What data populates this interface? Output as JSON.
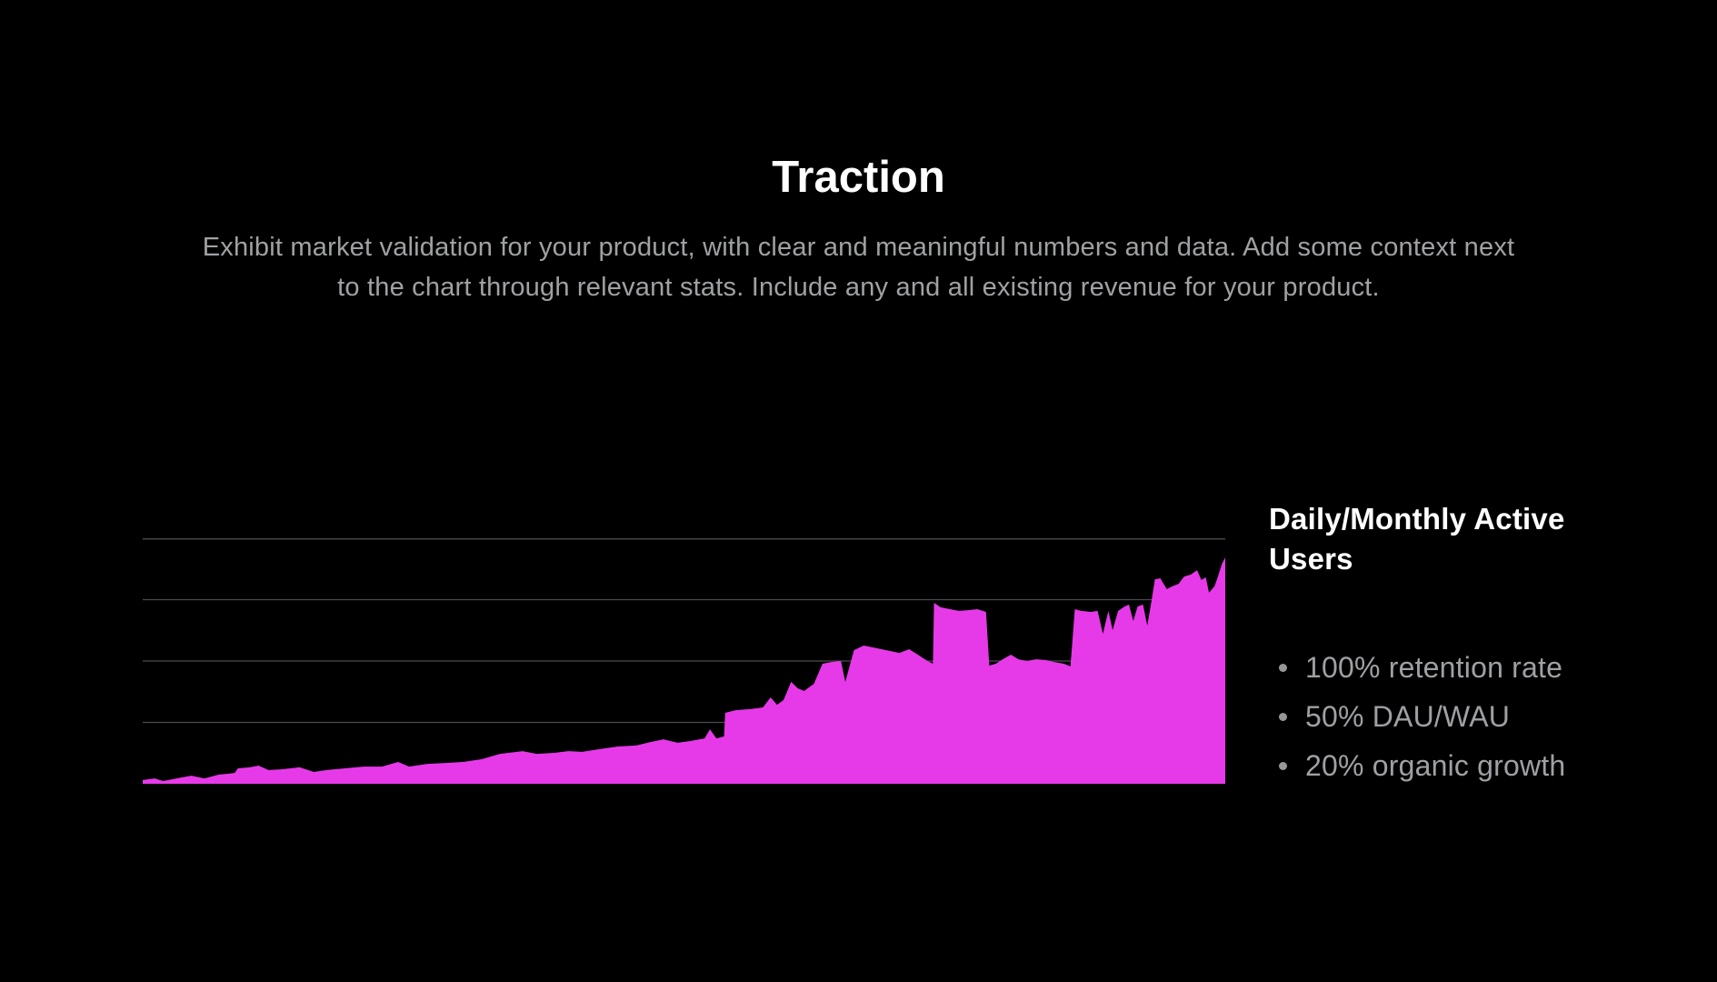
{
  "slide": {
    "title": "Traction",
    "subtitle_lines": [
      "Exhibit market validation for your product, with clear and meaningful numbers and data. Add some context next",
      "to the chart through relevant stats. Include any and all existing revenue for your product."
    ]
  },
  "stats_panel": {
    "heading": "Daily/Monthly Active Users",
    "bullets": [
      {
        "label": "100% retention rate"
      },
      {
        "label": "50% DAU/WAU"
      },
      {
        "label": "20% organic growth"
      }
    ]
  },
  "colors": {
    "background": "#000000",
    "title_text": "#ffffff",
    "subtitle_text": "#9fa1a3",
    "heading_text": "#ffffff",
    "bullet_text": "#9ea0a3",
    "bullet_dot": "#97979a",
    "area_fill": "#e63ae8",
    "gridline": "#4b4b4d"
  },
  "chart_data": {
    "type": "area",
    "title": "Daily/Monthly Active Users",
    "xlabel": "",
    "ylabel": "",
    "legend": "none",
    "grid": "horizontal-only",
    "x_axis": {
      "tick_labels": [],
      "range_pct": [
        0,
        100
      ]
    },
    "y_axis": {
      "tick_labels": [],
      "range_pct": [
        0,
        100
      ],
      "gridline_values_pct": [
        25,
        50,
        75,
        100
      ]
    },
    "series": [
      {
        "name": "Daily/Monthly Active Users",
        "points": [
          [
            0,
            1.5
          ],
          [
            1.1,
            2.2
          ],
          [
            1.9,
            1.1
          ],
          [
            3.6,
            2.6
          ],
          [
            4.5,
            3.3
          ],
          [
            5.7,
            2.2
          ],
          [
            7,
            3.7
          ],
          [
            8.5,
            4.4
          ],
          [
            8.8,
            6.3
          ],
          [
            9.9,
            6.7
          ],
          [
            10.7,
            7.4
          ],
          [
            11.6,
            5.6
          ],
          [
            12.8,
            5.9
          ],
          [
            14.5,
            6.7
          ],
          [
            15.8,
            4.8
          ],
          [
            17,
            5.6
          ],
          [
            18.7,
            6.3
          ],
          [
            20.4,
            7
          ],
          [
            22.1,
            7
          ],
          [
            23.6,
            8.9
          ],
          [
            24.6,
            7
          ],
          [
            26.3,
            8.1
          ],
          [
            28,
            8.5
          ],
          [
            29.6,
            8.9
          ],
          [
            31.3,
            10
          ],
          [
            33,
            12.2
          ],
          [
            35.1,
            13.3
          ],
          [
            36.4,
            12.2
          ],
          [
            38,
            12.6
          ],
          [
            39.3,
            13.3
          ],
          [
            40.6,
            13
          ],
          [
            42.2,
            14.1
          ],
          [
            43.9,
            15.2
          ],
          [
            45.6,
            15.6
          ],
          [
            46.9,
            17
          ],
          [
            48.1,
            18.1
          ],
          [
            49.4,
            16.7
          ],
          [
            50.6,
            17.4
          ],
          [
            51.9,
            18.5
          ],
          [
            52.4,
            22.2
          ],
          [
            53,
            18.5
          ],
          [
            53.7,
            19.3
          ],
          [
            53.8,
            28.9
          ],
          [
            54.8,
            30
          ],
          [
            56.1,
            30.4
          ],
          [
            57.3,
            31.1
          ],
          [
            58,
            35.2
          ],
          [
            58.6,
            32.2
          ],
          [
            59.2,
            34.1
          ],
          [
            59.9,
            41.5
          ],
          [
            60.5,
            38.9
          ],
          [
            61.1,
            37.8
          ],
          [
            62,
            40.7
          ],
          [
            62.8,
            48.9
          ],
          [
            63.6,
            49.6
          ],
          [
            64.5,
            50
          ],
          [
            64.9,
            41.5
          ],
          [
            65.7,
            54.4
          ],
          [
            66.6,
            56.3
          ],
          [
            67.4,
            55.6
          ],
          [
            68.7,
            54.4
          ],
          [
            69.9,
            53.3
          ],
          [
            70.8,
            54.8
          ],
          [
            71.6,
            52.6
          ],
          [
            72.5,
            50
          ],
          [
            73,
            48.9
          ],
          [
            73.1,
            73.7
          ],
          [
            73.7,
            71.9
          ],
          [
            74.6,
            71.1
          ],
          [
            75.4,
            70.4
          ],
          [
            76.2,
            70.7
          ],
          [
            77.1,
            71.1
          ],
          [
            77.9,
            70
          ],
          [
            78.2,
            48.1
          ],
          [
            78.8,
            48.9
          ],
          [
            79.6,
            51.1
          ],
          [
            80.2,
            52.6
          ],
          [
            80.9,
            50.7
          ],
          [
            81.7,
            50
          ],
          [
            82.5,
            50.7
          ],
          [
            83.4,
            50.4
          ],
          [
            84.2,
            49.6
          ],
          [
            85.1,
            48.9
          ],
          [
            85.7,
            47.8
          ],
          [
            86.1,
            71.1
          ],
          [
            86.7,
            70.4
          ],
          [
            87.6,
            70
          ],
          [
            88.2,
            70.4
          ],
          [
            88.7,
            61.1
          ],
          [
            89.2,
            70.4
          ],
          [
            89.6,
            62.6
          ],
          [
            90.1,
            70.4
          ],
          [
            90.7,
            72.2
          ],
          [
            91.1,
            73
          ],
          [
            91.5,
            66.3
          ],
          [
            91.9,
            72.2
          ],
          [
            92.4,
            73
          ],
          [
            92.8,
            64.4
          ],
          [
            93.2,
            74.8
          ],
          [
            93.5,
            83.3
          ],
          [
            94,
            83.7
          ],
          [
            94.6,
            79.3
          ],
          [
            95.1,
            80.4
          ],
          [
            95.7,
            81.5
          ],
          [
            96.2,
            84.4
          ],
          [
            96.8,
            85.2
          ],
          [
            97.4,
            87
          ],
          [
            97.8,
            83
          ],
          [
            98.2,
            84.1
          ],
          [
            98.5,
            77.8
          ],
          [
            99,
            80.4
          ],
          [
            99.3,
            84.1
          ],
          [
            99.7,
            89.6
          ],
          [
            100,
            92.2
          ]
        ]
      }
    ],
    "annotations": [
      "100% retention rate",
      "50% DAU/WAU",
      "20% organic growth"
    ]
  }
}
